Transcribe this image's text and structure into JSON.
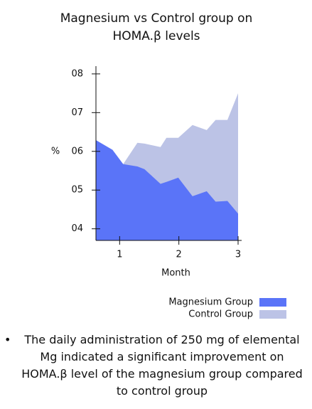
{
  "chart_data": {
    "type": "area",
    "title": "Magnesium vs Control group on HOMA.β levels",
    "x": [
      0.6,
      0.88,
      1.06,
      1.3,
      1.42,
      1.69,
      1.79,
      1.99,
      2.23,
      2.47,
      2.62,
      2.82,
      3.0
    ],
    "series": [
      {
        "name": "Control Group",
        "color": "#bcc3e6",
        "values": [
          null,
          null,
          5.67,
          6.22,
          6.2,
          6.11,
          6.35,
          6.35,
          6.68,
          6.55,
          6.81,
          6.81,
          7.5
        ]
      },
      {
        "name": "Magnesium Group",
        "color": "#5a74f8",
        "values": [
          6.29,
          6.04,
          5.67,
          5.61,
          5.54,
          5.16,
          5.21,
          5.32,
          4.84,
          4.97,
          4.7,
          4.72,
          4.39
        ]
      }
    ],
    "xlabel": "Month",
    "ylabel": "%",
    "xlim": [
      0.6,
      3.06
    ],
    "ylim": [
      3.7,
      8.2
    ],
    "xticks": [
      1,
      2,
      3
    ],
    "yticks": [
      {
        "value": 4,
        "label": "04"
      },
      {
        "value": 5,
        "label": "05"
      },
      {
        "value": 6,
        "label": "06"
      },
      {
        "value": 7,
        "label": "07"
      },
      {
        "value": 8,
        "label": "08"
      }
    ],
    "legend": "lower right",
    "note": "The daily administration of 250 mg of elemental Mg indicated a significant improvement on HOMA.β level of the magnesium group compared to control group"
  }
}
